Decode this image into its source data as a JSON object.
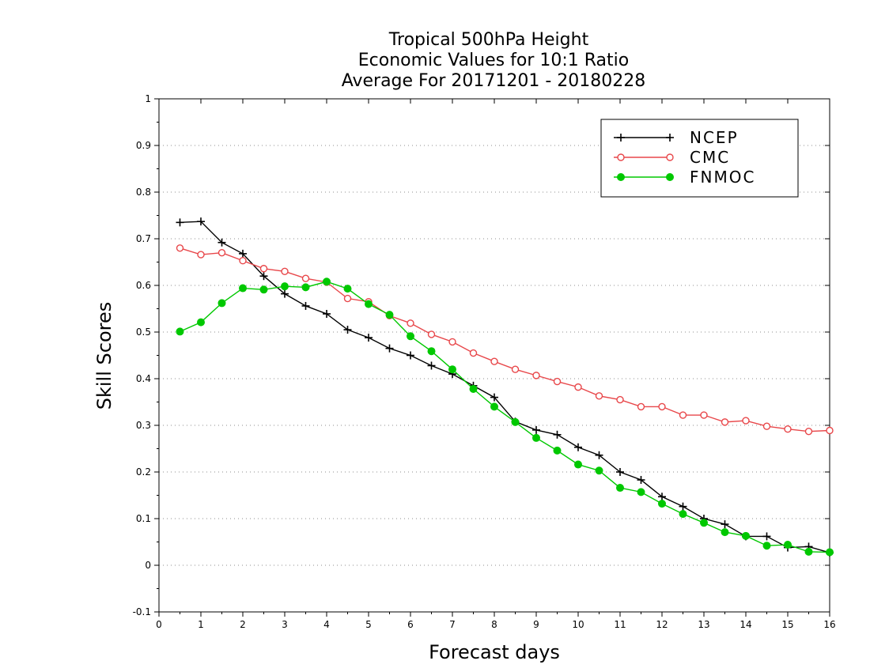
{
  "chart_data": {
    "type": "line",
    "title": [
      "Tropical 500hPa Height",
      "Economic Values for 10:1 Ratio",
      "Average For 20171201 - 20180228"
    ],
    "xlabel": "Forecast days",
    "ylabel": "Skill Scores",
    "xlim": [
      0,
      16
    ],
    "ylim": [
      -0.1,
      1
    ],
    "xticks": [
      0,
      1,
      2,
      3,
      4,
      5,
      6,
      7,
      8,
      9,
      10,
      11,
      12,
      13,
      14,
      15,
      16
    ],
    "yticks": [
      -0.1,
      0,
      0.1,
      0.2,
      0.3,
      0.4,
      0.5,
      0.6,
      0.7,
      0.8,
      0.9,
      1
    ],
    "ytick_labels": [
      "-0.1",
      "0",
      "0.1",
      "0.2",
      "0.3",
      "0.4",
      "0.5",
      "0.6",
      "0.7",
      "0.8",
      "0.9",
      "1"
    ],
    "grid": "horizontal dotted",
    "legend_position": "top-right",
    "x": [
      0.5,
      1,
      1.5,
      2,
      2.5,
      3,
      3.5,
      4,
      4.5,
      5,
      5.5,
      6,
      6.5,
      7,
      7.5,
      8,
      8.5,
      9,
      9.5,
      10,
      10.5,
      11,
      11.5,
      12,
      12.5,
      13,
      13.5,
      14,
      14.5,
      15,
      15.5,
      16
    ],
    "series": [
      {
        "name": "NCEP",
        "color": "#000000",
        "marker": "plus",
        "values": [
          0.735,
          0.737,
          0.692,
          0.668,
          0.62,
          0.582,
          0.556,
          0.539,
          0.505,
          0.488,
          0.465,
          0.45,
          0.428,
          0.41,
          0.385,
          0.36,
          0.308,
          0.29,
          0.28,
          0.253,
          0.236,
          0.2,
          0.183,
          0.147,
          0.126,
          0.1,
          0.088,
          0.062,
          0.062,
          0.038,
          0.04,
          0.027
        ]
      },
      {
        "name": "CMC",
        "color": "#e8474a",
        "marker": "open-circle",
        "values": [
          0.68,
          0.666,
          0.67,
          0.653,
          0.636,
          0.63,
          0.615,
          0.607,
          0.572,
          0.565,
          0.535,
          0.519,
          0.495,
          0.479,
          0.455,
          0.437,
          0.42,
          0.407,
          0.394,
          0.382,
          0.363,
          0.355,
          0.34,
          0.34,
          0.322,
          0.322,
          0.307,
          0.31,
          0.298,
          0.292,
          0.287,
          0.289
        ]
      },
      {
        "name": "FNMOC",
        "color": "#00c800",
        "marker": "filled-circle",
        "values": [
          0.501,
          0.521,
          0.562,
          0.594,
          0.591,
          0.598,
          0.596,
          0.608,
          0.593,
          0.56,
          0.537,
          0.491,
          0.459,
          0.42,
          0.378,
          0.34,
          0.307,
          0.273,
          0.246,
          0.216,
          0.203,
          0.166,
          0.157,
          0.132,
          0.11,
          0.091,
          0.071,
          0.063,
          0.042,
          0.044,
          0.029,
          0.028
        ]
      }
    ]
  }
}
